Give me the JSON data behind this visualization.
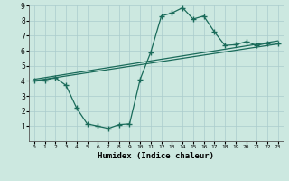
{
  "title": "",
  "xlabel": "Humidex (Indice chaleur)",
  "xlim": [
    -0.5,
    23.5
  ],
  "ylim": [
    0,
    9
  ],
  "xticks": [
    0,
    1,
    2,
    3,
    4,
    5,
    6,
    7,
    8,
    9,
    10,
    11,
    12,
    13,
    14,
    15,
    16,
    17,
    18,
    19,
    20,
    21,
    22,
    23
  ],
  "yticks": [
    1,
    2,
    3,
    4,
    5,
    6,
    7,
    8,
    9
  ],
  "bg_color": "#cce8e0",
  "plot_bg_color": "#cce8e0",
  "grid_color": "#aacccc",
  "line_color": "#1a6b5a",
  "line1_x": [
    0,
    1,
    2,
    3,
    4,
    5,
    6,
    7,
    8,
    9,
    10,
    11,
    12,
    13,
    14,
    15,
    16,
    17,
    18,
    19,
    20,
    21,
    22,
    23
  ],
  "line1_y": [
    4.0,
    4.05,
    4.2,
    3.7,
    2.2,
    1.15,
    1.0,
    0.85,
    1.1,
    1.15,
    4.1,
    5.9,
    8.3,
    8.5,
    8.85,
    8.1,
    8.3,
    7.25,
    6.35,
    6.4,
    6.6,
    6.35,
    6.5,
    6.5
  ],
  "line2_x": [
    0,
    23
  ],
  "line2_y": [
    4.0,
    6.45
  ],
  "line3_x": [
    0,
    23
  ],
  "line3_y": [
    4.1,
    6.65
  ]
}
